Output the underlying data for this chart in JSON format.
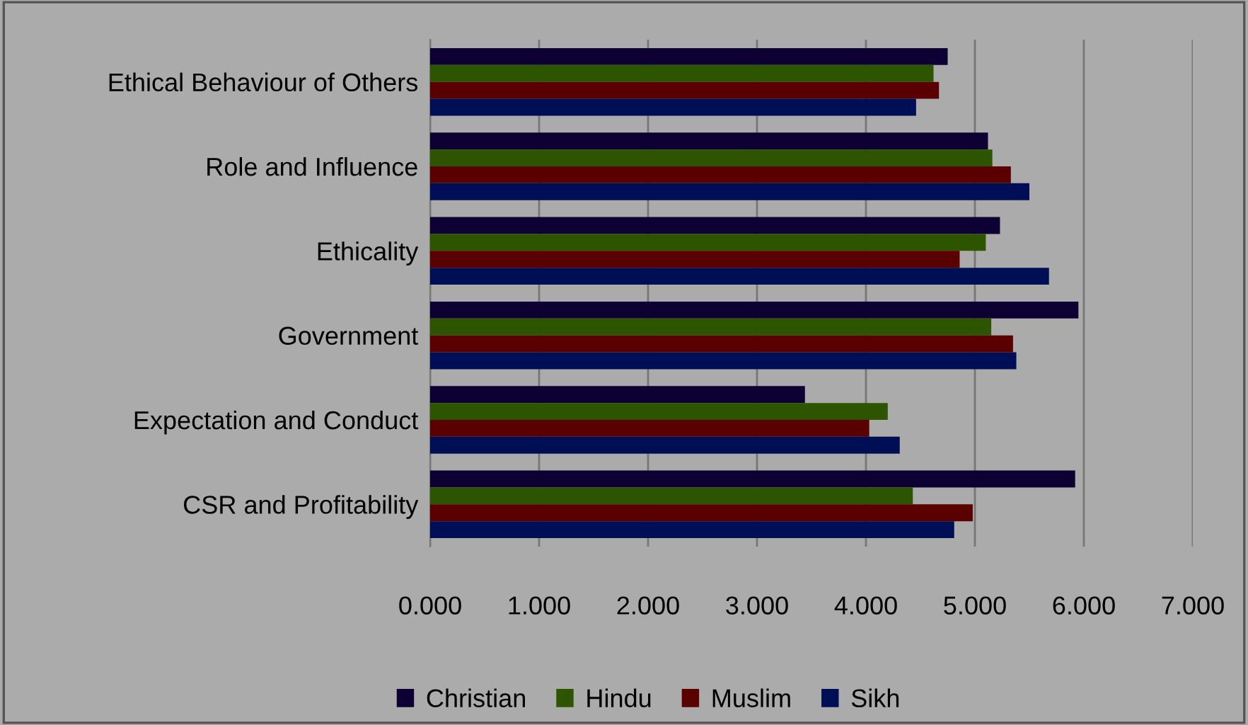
{
  "chart_data": {
    "type": "bar",
    "orientation": "horizontal",
    "categories": [
      "Ethical Behaviour of Others",
      "Role and Influence",
      "Ethicality",
      "Government",
      "Expectation and Conduct",
      "CSR and Profitability"
    ],
    "series": [
      {
        "name": "Christian",
        "color": "#0d0033",
        "values": [
          4.75,
          5.12,
          5.23,
          5.95,
          3.44,
          5.92
        ]
      },
      {
        "name": "Hindu",
        "color": "#2d5500",
        "values": [
          4.62,
          5.16,
          5.1,
          5.15,
          4.2,
          4.43
        ]
      },
      {
        "name": "Muslim",
        "color": "#5a0000",
        "values": [
          4.67,
          5.33,
          4.86,
          5.35,
          4.03,
          4.98
        ]
      },
      {
        "name": "Sikh",
        "color": "#000f55",
        "values": [
          4.46,
          5.5,
          5.68,
          5.38,
          4.31,
          4.81
        ]
      }
    ],
    "xlim": [
      0,
      7
    ],
    "xticks": [
      {
        "value": 0,
        "label": "0.000"
      },
      {
        "value": 1,
        "label": "1.000"
      },
      {
        "value": 2,
        "label": "2.000"
      },
      {
        "value": 3,
        "label": "3.000"
      },
      {
        "value": 4,
        "label": "4.000"
      },
      {
        "value": 5,
        "label": "5.000"
      },
      {
        "value": 6,
        "label": "6.000"
      },
      {
        "value": 7,
        "label": "7.000"
      }
    ],
    "grid": "x",
    "legend": "bottom"
  }
}
